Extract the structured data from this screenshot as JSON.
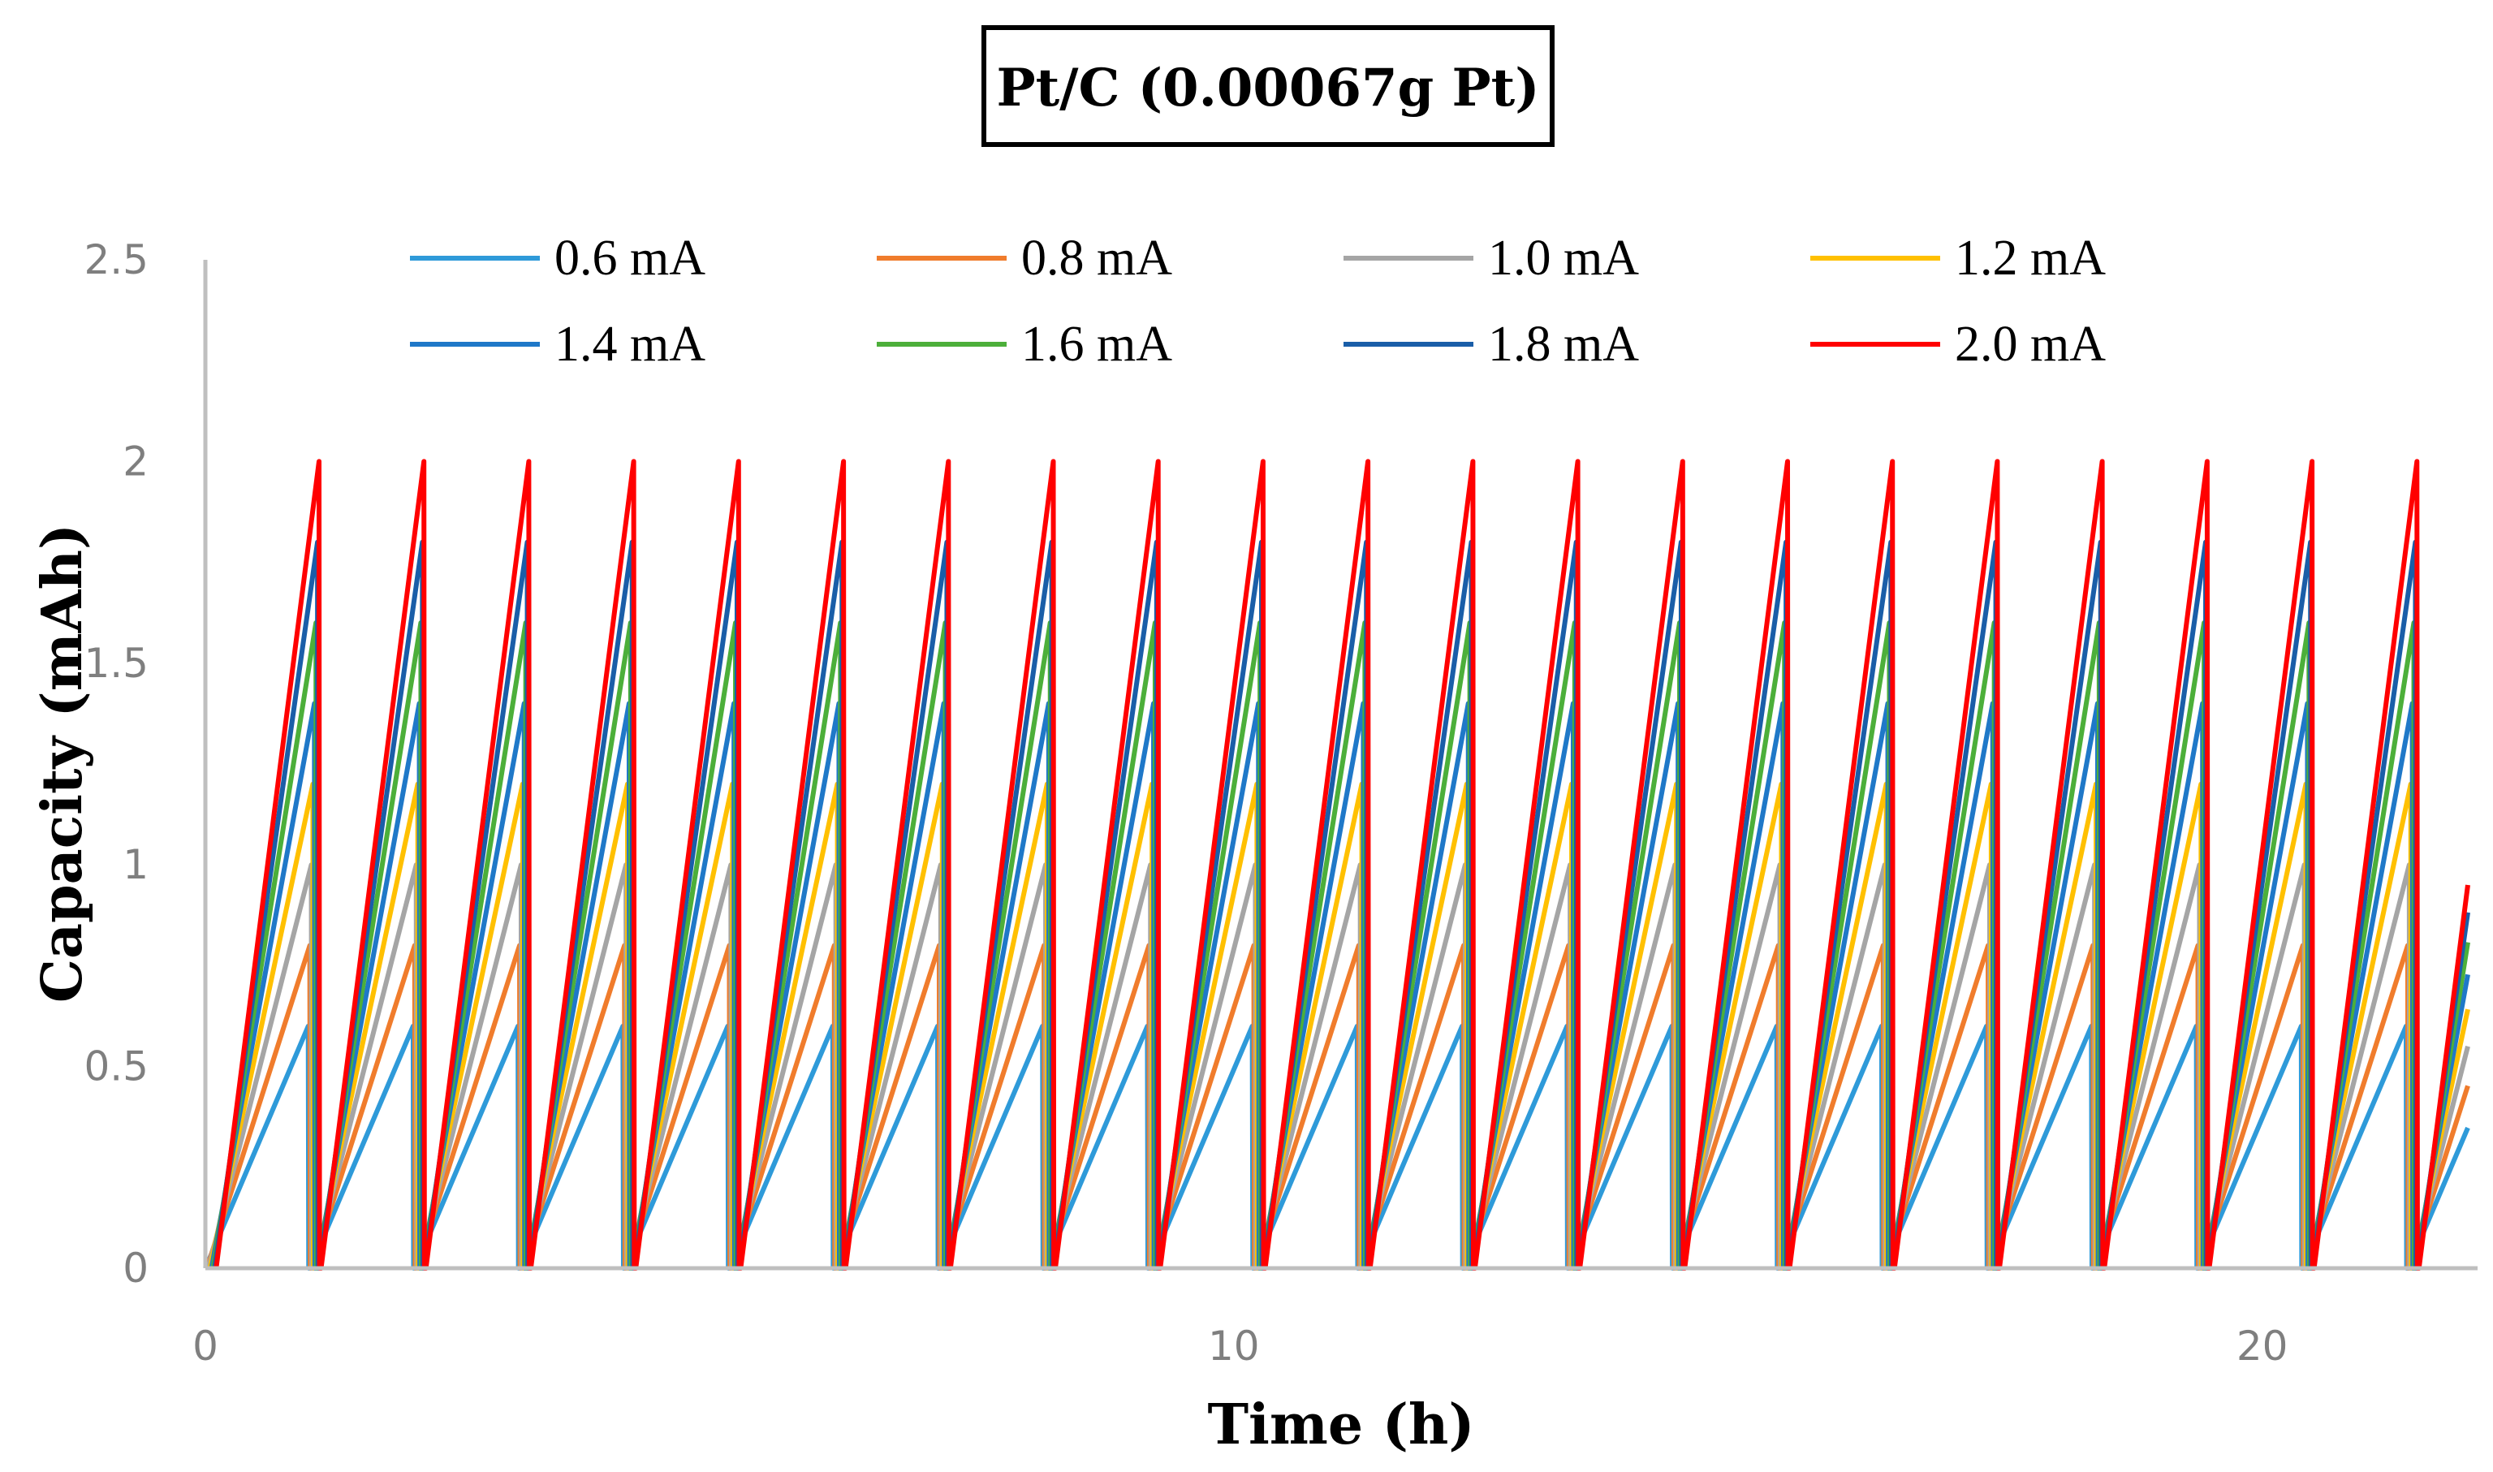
{
  "chart_data": {
    "type": "line",
    "title": "Pt/C (0.00067g Pt)",
    "xlabel": "Time (h)",
    "ylabel": "Capacity (mAh)",
    "xlim": [
      0,
      22
    ],
    "ylim": [
      0,
      2.5
    ],
    "x_ticks": [
      "0",
      "10",
      "20"
    ],
    "y_ticks": [
      "0",
      "0.5",
      "1",
      "1.5",
      "2",
      "2.5"
    ],
    "x_tick_values": [
      0,
      10,
      20
    ],
    "y_tick_values": [
      0,
      0.5,
      1,
      1.5,
      2,
      2.5
    ],
    "grid": false,
    "legend_position": "top",
    "series": [
      {
        "name": "0.6 mA",
        "color": "#2E9AD9",
        "current_mA": 0.6,
        "peak": 0.6
      },
      {
        "name": "0.8 mA",
        "color": "#F07C2C",
        "current_mA": 0.8,
        "peak": 0.8
      },
      {
        "name": "1.0 mA",
        "color": "#A5A5A5",
        "current_mA": 1.0,
        "peak": 1.0
      },
      {
        "name": "1.2 mA",
        "color": "#FFC000",
        "current_mA": 1.2,
        "peak": 1.2
      },
      {
        "name": "1.4 mA",
        "color": "#1F78C8",
        "current_mA": 1.4,
        "peak": 1.4
      },
      {
        "name": "1.6 mA",
        "color": "#4CAF3A",
        "current_mA": 1.6,
        "peak": 1.6
      },
      {
        "name": "1.8 mA",
        "color": "#1A5EA8",
        "current_mA": 1.8,
        "peak": 1.8
      },
      {
        "name": "2.0 mA",
        "color": "#FF0000",
        "current_mA": 2.0,
        "peak": 2.0
      }
    ]
  }
}
